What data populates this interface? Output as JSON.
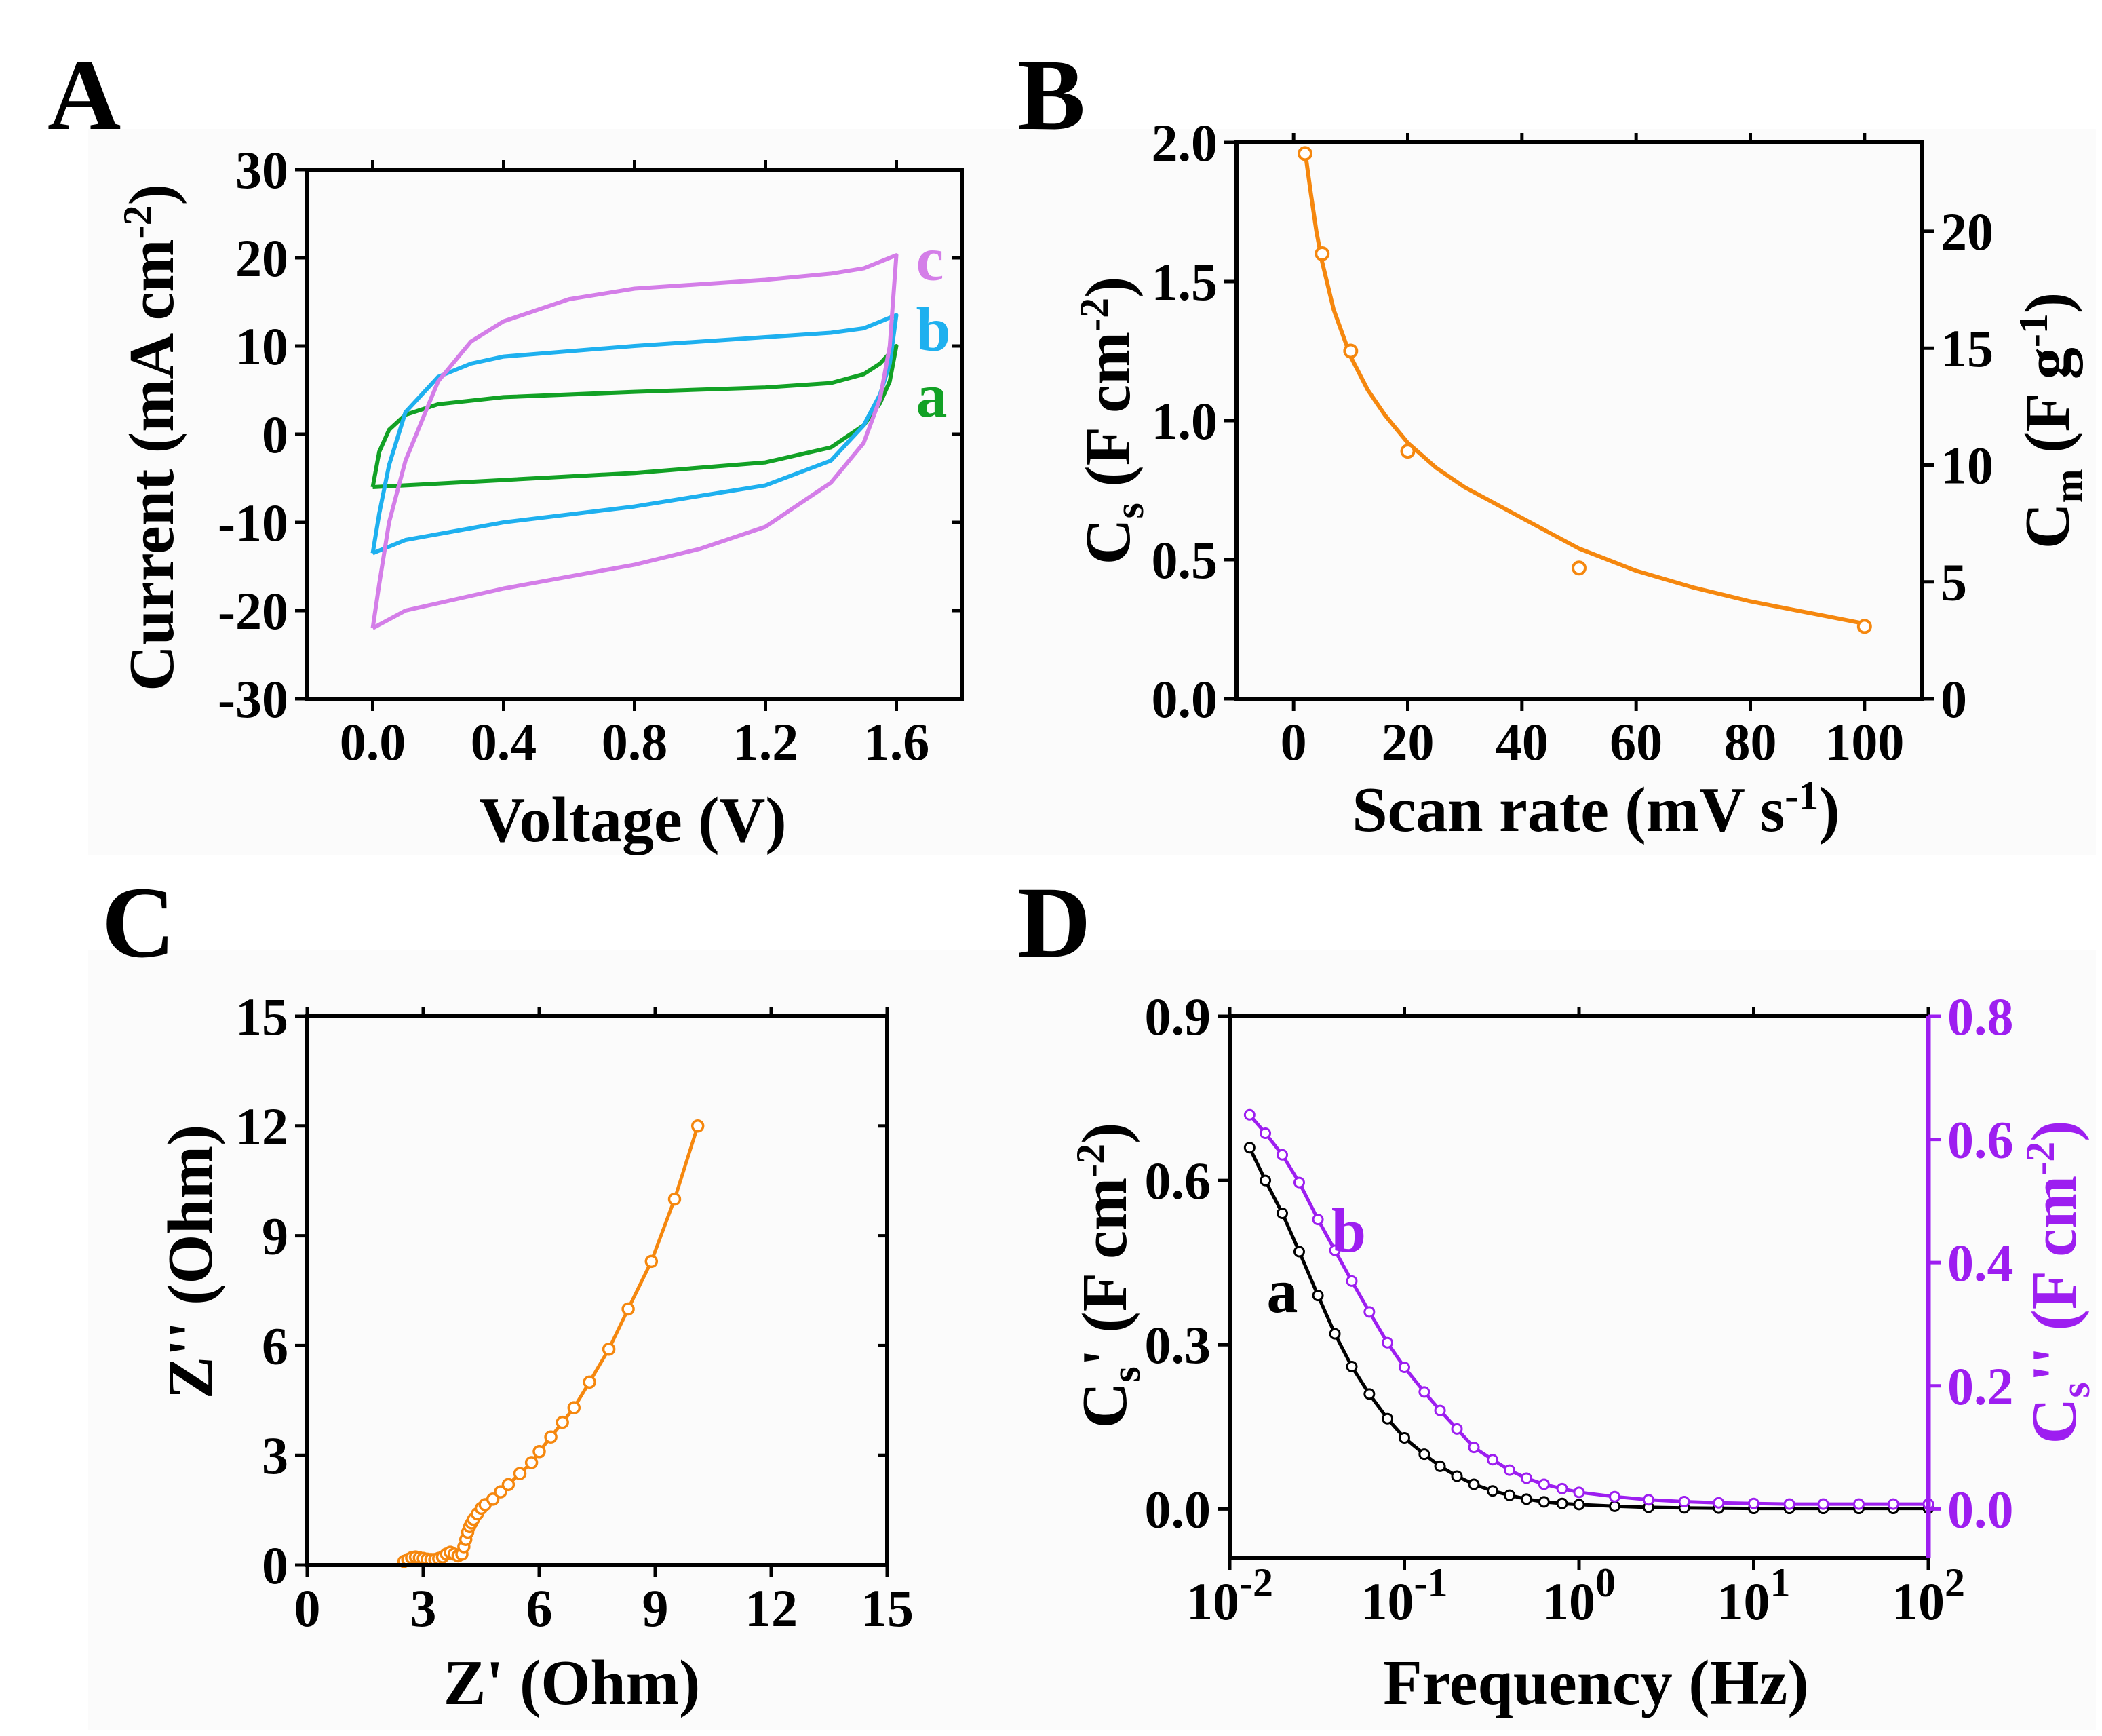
{
  "figure": {
    "background": "#ffffff",
    "panel_background": "#fbfbfb"
  },
  "chart_data": [
    {
      "panel": "A",
      "type": "line",
      "title": "",
      "xlabel": "Voltage (V)",
      "ylabel": "Current (mA cm-2)",
      "xlim": [
        -0.2,
        1.8
      ],
      "ylim": [
        -30,
        30
      ],
      "xticks": [
        0.0,
        0.4,
        0.8,
        1.2,
        1.6
      ],
      "xtick_labels": [
        "0.0",
        "0.4",
        "0.8",
        "1.2",
        "1.6"
      ],
      "yticks": [
        -30,
        -20,
        -10,
        0,
        10,
        20,
        30
      ],
      "ytick_labels": [
        "-30",
        "-20",
        "-10",
        "0",
        "10",
        "20",
        "30"
      ],
      "series": [
        {
          "name": "a",
          "color": "#12a125",
          "upper": {
            "x": [
              0.0,
              0.02,
              0.05,
              0.1,
              0.2,
              0.4,
              0.8,
              1.2,
              1.4,
              1.5,
              1.55,
              1.6
            ],
            "y": [
              -6,
              -2,
              0.5,
              2.2,
              3.4,
              4.2,
              4.8,
              5.3,
              5.8,
              6.8,
              8.0,
              10.0
            ]
          },
          "lower": {
            "x": [
              1.6,
              1.58,
              1.55,
              1.5,
              1.4,
              1.2,
              0.8,
              0.4,
              0.1,
              0.0
            ],
            "y": [
              10.0,
              6.0,
              3.5,
              1.0,
              -1.5,
              -3.2,
              -4.4,
              -5.2,
              -5.8,
              -6.0
            ]
          }
        },
        {
          "name": "b",
          "color": "#1eb0ef",
          "upper": {
            "x": [
              0.0,
              0.02,
              0.05,
              0.1,
              0.2,
              0.3,
              0.4,
              0.8,
              1.2,
              1.4,
              1.5,
              1.6
            ],
            "y": [
              -13.5,
              -9,
              -3.5,
              2.5,
              6.5,
              8.0,
              8.8,
              10.0,
              11.0,
              11.5,
              12.0,
              13.5
            ]
          },
          "lower": {
            "x": [
              1.6,
              1.58,
              1.55,
              1.5,
              1.4,
              1.2,
              0.8,
              0.4,
              0.1,
              0.0
            ],
            "y": [
              13.5,
              8.0,
              4.5,
              1.0,
              -3.0,
              -5.8,
              -8.2,
              -10.0,
              -12.0,
              -13.5
            ]
          }
        },
        {
          "name": "c",
          "color": "#d47ee8",
          "upper": {
            "x": [
              0.0,
              0.02,
              0.05,
              0.1,
              0.2,
              0.3,
              0.4,
              0.6,
              0.8,
              1.2,
              1.4,
              1.5,
              1.6
            ],
            "y": [
              -22,
              -17,
              -10,
              -3,
              6,
              10.5,
              12.8,
              15.3,
              16.5,
              17.5,
              18.2,
              18.8,
              20.3
            ]
          },
          "lower": {
            "x": [
              1.6,
              1.58,
              1.55,
              1.5,
              1.4,
              1.2,
              1.0,
              0.8,
              0.4,
              0.1,
              0.0
            ],
            "y": [
              20.3,
              10.0,
              4.0,
              -1.0,
              -5.5,
              -10.5,
              -13.0,
              -14.8,
              -17.5,
              -20.0,
              -22.0
            ]
          }
        }
      ],
      "annotations": [
        {
          "text": "c",
          "x": 1.66,
          "y": 17.5,
          "color": "#d47ee8"
        },
        {
          "text": "b",
          "x": 1.66,
          "y": 9.5,
          "color": "#1eb0ef"
        },
        {
          "text": "a",
          "x": 1.66,
          "y": 2.0,
          "color": "#12a125"
        }
      ],
      "grid": false
    },
    {
      "panel": "B",
      "type": "scatter",
      "title": "",
      "xlabel": "Scan rate (mV s-1)",
      "ylabel": "Cs (F cm-2)",
      "y2label": "Cm (F g-1)",
      "xlim": [
        -10,
        110
      ],
      "ylim": [
        0,
        2.0
      ],
      "y2lim": [
        0,
        23.8
      ],
      "xticks": [
        0,
        20,
        40,
        60,
        80,
        100
      ],
      "xtick_labels": [
        "0",
        "20",
        "40",
        "60",
        "80",
        "100"
      ],
      "yticks": [
        0.0,
        0.5,
        1.0,
        1.5,
        2.0
      ],
      "ytick_labels": [
        "0.0",
        "0.5",
        "1.0",
        "1.5",
        "2.0"
      ],
      "y2ticks": [
        0,
        5,
        10,
        15,
        20
      ],
      "y2tick_labels": [
        "0",
        "5",
        "10",
        "15",
        "20"
      ],
      "color": "#f5870e",
      "points": {
        "x": [
          2,
          5,
          10,
          20,
          50,
          100
        ],
        "y": [
          1.96,
          1.6,
          1.25,
          0.89,
          0.47,
          0.26
        ]
      },
      "fit": {
        "x": [
          2,
          3,
          4,
          5,
          7,
          10,
          13,
          16,
          20,
          25,
          30,
          40,
          50,
          60,
          70,
          80,
          90,
          100
        ],
        "y": [
          1.97,
          1.82,
          1.68,
          1.57,
          1.4,
          1.23,
          1.11,
          1.02,
          0.92,
          0.83,
          0.76,
          0.65,
          0.54,
          0.46,
          0.4,
          0.35,
          0.31,
          0.27
        ]
      },
      "grid": false
    },
    {
      "panel": "C",
      "type": "line",
      "title": "",
      "xlabel": "Z' (Ohm)",
      "ylabel": "Z'' (Ohm)",
      "xlim": [
        0,
        15
      ],
      "ylim": [
        0,
        15
      ],
      "xticks": [
        0,
        3,
        6,
        9,
        12,
        15
      ],
      "xtick_labels": [
        "0",
        "3",
        "6",
        "9",
        "12",
        "15"
      ],
      "yticks": [
        0,
        3,
        6,
        9,
        12,
        15
      ],
      "ytick_labels": [
        "0",
        "3",
        "6",
        "9",
        "12",
        "15"
      ],
      "color": "#f5870e",
      "x": [
        2.5,
        2.6,
        2.7,
        2.8,
        2.9,
        3.0,
        3.1,
        3.2,
        3.3,
        3.4,
        3.5,
        3.6,
        3.7,
        3.8,
        3.9,
        4.0,
        4.05,
        4.1,
        4.15,
        4.2,
        4.25,
        4.3,
        4.4,
        4.5,
        4.6,
        4.8,
        5.0,
        5.2,
        5.5,
        5.8,
        6.0,
        6.3,
        6.6,
        6.9,
        7.3,
        7.8,
        8.3,
        8.9,
        9.5,
        10.1
      ],
      "y": [
        0.1,
        0.15,
        0.2,
        0.22,
        0.2,
        0.18,
        0.16,
        0.15,
        0.15,
        0.18,
        0.22,
        0.3,
        0.35,
        0.3,
        0.25,
        0.3,
        0.5,
        0.7,
        0.9,
        1.05,
        1.15,
        1.25,
        1.4,
        1.55,
        1.65,
        1.8,
        2.0,
        2.2,
        2.5,
        2.8,
        3.1,
        3.5,
        3.9,
        4.3,
        5.0,
        5.9,
        7.0,
        8.3,
        10.0,
        12.0
      ],
      "grid": false
    },
    {
      "panel": "D",
      "type": "line",
      "title": "",
      "xlabel": "Frequency (Hz)",
      "ylabel": "Cs' (F cm-2)",
      "y2label": "Cs'' (F cm-2)",
      "xscale": "log",
      "xlim": [
        0.01,
        100
      ],
      "ylim": [
        -0.09,
        0.9
      ],
      "y2lim": [
        -0.08,
        0.8
      ],
      "xticks": [
        0.01,
        0.1,
        1,
        10,
        100
      ],
      "xtick_labels": [
        "10",
        "10",
        "10",
        "10",
        "10"
      ],
      "xtick_exponents": [
        "-2",
        "-1",
        "0",
        "1",
        "2"
      ],
      "yticks": [
        0.0,
        0.3,
        0.6,
        0.9
      ],
      "ytick_labels": [
        "0.0",
        "0.3",
        "0.6",
        "0.9"
      ],
      "y2ticks": [
        0.0,
        0.2,
        0.4,
        0.6,
        0.8
      ],
      "y2tick_labels": [
        "0.0",
        "0.2",
        "0.4",
        "0.6",
        "0.8"
      ],
      "series": [
        {
          "name": "a",
          "axis": "left",
          "color": "#000000",
          "x": [
            0.013,
            0.016,
            0.02,
            0.025,
            0.032,
            0.04,
            0.05,
            0.063,
            0.08,
            0.1,
            0.13,
            0.16,
            0.2,
            0.25,
            0.32,
            0.4,
            0.5,
            0.63,
            0.8,
            1,
            1.6,
            2.5,
            4,
            6.3,
            10,
            16,
            25,
            40,
            63,
            100
          ],
          "y": [
            0.66,
            0.6,
            0.54,
            0.47,
            0.39,
            0.32,
            0.26,
            0.21,
            0.165,
            0.13,
            0.1,
            0.078,
            0.06,
            0.045,
            0.033,
            0.025,
            0.018,
            0.013,
            0.01,
            0.008,
            0.005,
            0.003,
            0.002,
            0.0015,
            0.001,
            0.001,
            0.001,
            0.001,
            0.001,
            0.001
          ]
        },
        {
          "name": "b",
          "axis": "right",
          "color": "#9d1ef0",
          "x": [
            0.013,
            0.016,
            0.02,
            0.025,
            0.032,
            0.04,
            0.05,
            0.063,
            0.08,
            0.1,
            0.13,
            0.16,
            0.2,
            0.25,
            0.32,
            0.4,
            0.5,
            0.63,
            0.8,
            1,
            1.6,
            2.5,
            4,
            6.3,
            10,
            16,
            25,
            40,
            63,
            100
          ],
          "y": [
            0.64,
            0.61,
            0.575,
            0.53,
            0.47,
            0.42,
            0.37,
            0.32,
            0.27,
            0.23,
            0.19,
            0.16,
            0.13,
            0.1,
            0.08,
            0.063,
            0.05,
            0.04,
            0.033,
            0.027,
            0.02,
            0.015,
            0.012,
            0.01,
            0.009,
            0.008,
            0.008,
            0.008,
            0.008,
            0.008
          ]
        }
      ],
      "annotations": [
        {
          "text": "a",
          "x": 0.02,
          "y": 0.36,
          "color": "#000000"
        },
        {
          "text": "b",
          "x": 0.048,
          "y": 0.47,
          "color": "#9d1ef0"
        }
      ],
      "grid": false
    }
  ]
}
